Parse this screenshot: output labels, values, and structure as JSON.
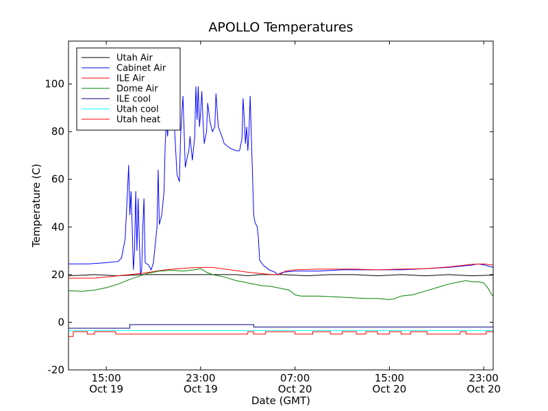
{
  "chart_data": {
    "type": "line",
    "title": "APOLLO Temperatures",
    "xlabel": "Date (GMT)",
    "ylabel": "Temperature (C)",
    "xlim": [
      11.8,
      47.8
    ],
    "ylim": [
      -20,
      118
    ],
    "x_unit": "hours since Oct 19 00:00 GMT",
    "yticks": [
      -20,
      0,
      20,
      40,
      60,
      80,
      100
    ],
    "xticks": [
      {
        "value": 15,
        "label1": "15:00",
        "label2": "Oct 19"
      },
      {
        "value": 23,
        "label1": "23:00",
        "label2": "Oct 19"
      },
      {
        "value": 31,
        "label1": "07:00",
        "label2": "Oct 20"
      },
      {
        "value": 39,
        "label1": "15:00",
        "label2": "Oct 20"
      },
      {
        "value": 47,
        "label1": "23:00",
        "label2": "Oct 20"
      }
    ],
    "legend_position": "top-left",
    "series": [
      {
        "name": "Utah Air",
        "color": "#000000",
        "points": [
          [
            11.8,
            19.5
          ],
          [
            14,
            20
          ],
          [
            16,
            19.5
          ],
          [
            18,
            20
          ],
          [
            20,
            20
          ],
          [
            22,
            20
          ],
          [
            24,
            20
          ],
          [
            26,
            20
          ],
          [
            27,
            19.5
          ],
          [
            28,
            20
          ],
          [
            30,
            20
          ],
          [
            32,
            19.5
          ],
          [
            34,
            20
          ],
          [
            36,
            20
          ],
          [
            38,
            19.5
          ],
          [
            40,
            20
          ],
          [
            42,
            19.5
          ],
          [
            44,
            20
          ],
          [
            46,
            19.5
          ],
          [
            47.8,
            19.8
          ]
        ]
      },
      {
        "name": "Cabinet Air",
        "color": "#0000ff",
        "points": [
          [
            11.8,
            24.5
          ],
          [
            13.5,
            24.5
          ],
          [
            15,
            25
          ],
          [
            16,
            25.5
          ],
          [
            16.3,
            27
          ],
          [
            16.6,
            35
          ],
          [
            16.8,
            55
          ],
          [
            16.9,
            66
          ],
          [
            17,
            45
          ],
          [
            17.1,
            55
          ],
          [
            17.2,
            40
          ],
          [
            17.3,
            22
          ],
          [
            17.4,
            30
          ],
          [
            17.5,
            55
          ],
          [
            17.6,
            30
          ],
          [
            17.7,
            52
          ],
          [
            17.8,
            35
          ],
          [
            17.9,
            20
          ],
          [
            18,
            22
          ],
          [
            18.1,
            40
          ],
          [
            18.2,
            52
          ],
          [
            18.3,
            25
          ],
          [
            18.6,
            24
          ],
          [
            18.8,
            22
          ],
          [
            19,
            25
          ],
          [
            19.3,
            40
          ],
          [
            19.4,
            64
          ],
          [
            19.5,
            41
          ],
          [
            19.7,
            45
          ],
          [
            19.9,
            55
          ],
          [
            20,
            75
          ],
          [
            20.1,
            85
          ],
          [
            20.2,
            78
          ],
          [
            20.3,
            88
          ],
          [
            20.5,
            82
          ],
          [
            20.7,
            98
          ],
          [
            20.8,
            80
          ],
          [
            21,
            62
          ],
          [
            21.2,
            59
          ],
          [
            21.3,
            78
          ],
          [
            21.5,
            95
          ],
          [
            21.7,
            65
          ],
          [
            21.9,
            70
          ],
          [
            22,
            72
          ],
          [
            22.1,
            78
          ],
          [
            22.3,
            68
          ],
          [
            22.5,
            78
          ],
          [
            22.6,
            99
          ],
          [
            22.7,
            85
          ],
          [
            22.8,
            99
          ],
          [
            22.9,
            82
          ],
          [
            23,
            88
          ],
          [
            23.1,
            97
          ],
          [
            23.2,
            85
          ],
          [
            23.3,
            75
          ],
          [
            23.5,
            80
          ],
          [
            23.6,
            92
          ],
          [
            23.8,
            84
          ],
          [
            24,
            80
          ],
          [
            24.2,
            82
          ],
          [
            24.3,
            96
          ],
          [
            24.5,
            82
          ],
          [
            24.8,
            78
          ],
          [
            25,
            75
          ],
          [
            25.5,
            73
          ],
          [
            26,
            72
          ],
          [
            26.3,
            72
          ],
          [
            26.5,
            77
          ],
          [
            26.6,
            94
          ],
          [
            26.7,
            85
          ],
          [
            26.8,
            75
          ],
          [
            26.9,
            82
          ],
          [
            27,
            72
          ],
          [
            27.1,
            80
          ],
          [
            27.2,
            95
          ],
          [
            27.3,
            78
          ],
          [
            27.5,
            45
          ],
          [
            27.6,
            42
          ],
          [
            27.8,
            40
          ],
          [
            27.9,
            35
          ],
          [
            28,
            26
          ],
          [
            28.3,
            24
          ],
          [
            28.8,
            22
          ],
          [
            29.3,
            21
          ],
          [
            29.5,
            20
          ],
          [
            30,
            21
          ],
          [
            31,
            21.5
          ],
          [
            33,
            21.5
          ],
          [
            35,
            22
          ],
          [
            38,
            22
          ],
          [
            40,
            22
          ],
          [
            42,
            22.5
          ],
          [
            44,
            23
          ],
          [
            46,
            24
          ],
          [
            46.5,
            24.5
          ],
          [
            47.1,
            24
          ],
          [
            47.8,
            23
          ]
        ]
      },
      {
        "name": "ILE Air",
        "color": "#ff0000",
        "points": [
          [
            11.8,
            18.5
          ],
          [
            14,
            18.5
          ],
          [
            16,
            19.5
          ],
          [
            18,
            20.5
          ],
          [
            20,
            22
          ],
          [
            22,
            22.8
          ],
          [
            23,
            23
          ],
          [
            24,
            23
          ],
          [
            25.5,
            22
          ],
          [
            27,
            21
          ],
          [
            28,
            20.5
          ],
          [
            29,
            20
          ],
          [
            29.7,
            20
          ],
          [
            30.2,
            21.5
          ],
          [
            31,
            22
          ],
          [
            33,
            22.3
          ],
          [
            36,
            22.3
          ],
          [
            38,
            22
          ],
          [
            40,
            22.3
          ],
          [
            42,
            22.5
          ],
          [
            44,
            23.2
          ],
          [
            46,
            24.3
          ],
          [
            47,
            24.5
          ],
          [
            47.8,
            24
          ]
        ]
      },
      {
        "name": "Dome Air",
        "color": "#008000",
        "points": [
          [
            11.8,
            13.2
          ],
          [
            13,
            13
          ],
          [
            14,
            13.5
          ],
          [
            15,
            14.5
          ],
          [
            16,
            16
          ],
          [
            17,
            18
          ],
          [
            17.6,
            19
          ],
          [
            18.5,
            20.5
          ],
          [
            19.5,
            21.5
          ],
          [
            20.5,
            21.8
          ],
          [
            21.5,
            21.5
          ],
          [
            22.5,
            22
          ],
          [
            23,
            22.5
          ],
          [
            23.5,
            21
          ],
          [
            24,
            20
          ],
          [
            25,
            19
          ],
          [
            26,
            17.5
          ],
          [
            27,
            16.5
          ],
          [
            28,
            15.5
          ],
          [
            29,
            15
          ],
          [
            30,
            14
          ],
          [
            30.5,
            13.5
          ],
          [
            31,
            11.5
          ],
          [
            31.5,
            11
          ],
          [
            32,
            11
          ],
          [
            33,
            11
          ],
          [
            35,
            10.5
          ],
          [
            37,
            10
          ],
          [
            38,
            10
          ],
          [
            39,
            9.5
          ],
          [
            39.5,
            10
          ],
          [
            40,
            11
          ],
          [
            41,
            11.5
          ],
          [
            42,
            13
          ],
          [
            43,
            14.5
          ],
          [
            44,
            16
          ],
          [
            45,
            17
          ],
          [
            45.5,
            17.5
          ],
          [
            46,
            17
          ],
          [
            46.5,
            17
          ],
          [
            47,
            16.5
          ],
          [
            47.4,
            14
          ],
          [
            47.6,
            12
          ],
          [
            47.8,
            11
          ]
        ]
      },
      {
        "name": "ILE cool",
        "color": "#000080",
        "points": [
          [
            11.8,
            -2.5
          ],
          [
            17,
            -2.5
          ],
          [
            17,
            -1
          ],
          [
            27.5,
            -1
          ],
          [
            27.5,
            -2
          ],
          [
            47.8,
            -2
          ]
        ]
      },
      {
        "name": "Utah cool",
        "color": "#00ffff",
        "points": [
          [
            11.8,
            -3.5
          ],
          [
            47.8,
            -3.5
          ]
        ]
      },
      {
        "name": "Utah heat",
        "color": "#ff0000",
        "points": [
          [
            11.8,
            -6
          ],
          [
            12.2,
            -6
          ],
          [
            12.2,
            -4
          ],
          [
            13.4,
            -4
          ],
          [
            13.4,
            -5
          ],
          [
            14,
            -5
          ],
          [
            14,
            -4
          ],
          [
            15.8,
            -4
          ],
          [
            15.8,
            -5
          ],
          [
            27,
            -5
          ],
          [
            27,
            -4
          ],
          [
            27.5,
            -4
          ],
          [
            27.5,
            -5
          ],
          [
            28.5,
            -5
          ],
          [
            28.5,
            -4
          ],
          [
            31,
            -4
          ],
          [
            31,
            -5
          ],
          [
            32.5,
            -5
          ],
          [
            32.5,
            -4
          ],
          [
            34,
            -4
          ],
          [
            34,
            -5
          ],
          [
            35,
            -5
          ],
          [
            35,
            -4
          ],
          [
            36.2,
            -4
          ],
          [
            36.2,
            -5
          ],
          [
            37,
            -5
          ],
          [
            37,
            -4
          ],
          [
            38,
            -4
          ],
          [
            38,
            -5
          ],
          [
            39,
            -5
          ],
          [
            39,
            -4
          ],
          [
            40,
            -4
          ],
          [
            40,
            -5
          ],
          [
            40.8,
            -5
          ],
          [
            40.8,
            -4
          ],
          [
            42.2,
            -4
          ],
          [
            42.2,
            -5
          ],
          [
            45,
            -5
          ],
          [
            45,
            -4
          ],
          [
            45.5,
            -4
          ],
          [
            45.5,
            -5
          ],
          [
            47.2,
            -5
          ],
          [
            47.2,
            -4
          ],
          [
            47.8,
            -4
          ]
        ]
      }
    ]
  }
}
